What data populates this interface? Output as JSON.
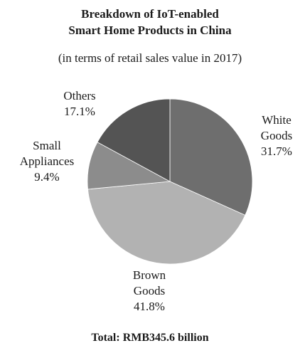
{
  "chart_data": {
    "type": "pie",
    "title_lines": [
      "Breakdown of IoT-enabled",
      "Smart Home Products in China"
    ],
    "subtitle": "(in terms of retail sales value in 2017)",
    "slices": [
      {
        "name_lines": [
          "White",
          "Goods"
        ],
        "value": 31.7,
        "value_label": "31.7%",
        "color": "#6e6e6e"
      },
      {
        "name_lines": [
          "Brown",
          "Goods"
        ],
        "value": 41.8,
        "value_label": "41.8%",
        "color": "#b2b2b2"
      },
      {
        "name_lines": [
          "Small",
          "Appliances"
        ],
        "value": 9.4,
        "value_label": "9.4%",
        "color": "#8c8c8c"
      },
      {
        "name_lines": [
          "Others"
        ],
        "value": 17.1,
        "value_label": "17.1%",
        "color": "#545454"
      }
    ],
    "total_label": "Total: RMB345.6 billion"
  }
}
